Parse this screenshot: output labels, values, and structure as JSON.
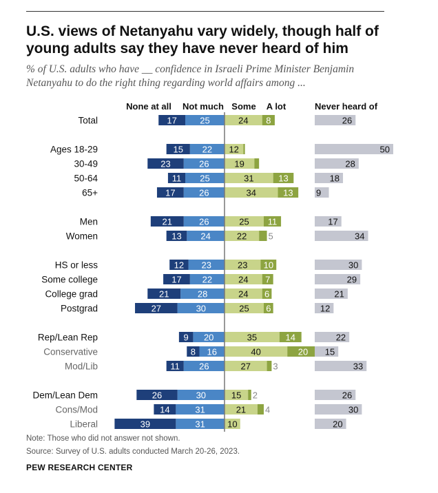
{
  "title": "U.S. views of Netanyahu vary widely, though half of young adults say they have never heard of him",
  "subtitle": "% of U.S. adults who have __ confidence in Israeli Prime Minister Benjamin Netanyahu to do the right thing regarding world affairs among ...",
  "note": "Note: Those who did not answer not shown.",
  "source": "Source: Survey of U.S. adults conducted March 20-26, 2023.",
  "brand": "PEW RESEARCH CENTER",
  "colors": {
    "none_at_all": "#1e3f7a",
    "not_much": "#4a86c6",
    "some": "#c8d48a",
    "a_lot": "#8da441",
    "never_heard": "#c4c6d0",
    "axis": "#777777"
  },
  "chart_data": {
    "type": "bar",
    "orientation": "diverging-horizontal",
    "column_headers": {
      "none_at_all": "None at all",
      "not_much": "Not much",
      "some": "Some",
      "a_lot": "A lot",
      "never_heard": "Never heard of"
    },
    "rows": [
      {
        "label": "Total",
        "group": 0,
        "none": 17,
        "notmuch": 25,
        "some": 24,
        "alot": 8,
        "never": 26,
        "some_label": "24",
        "alot_label": "8",
        "muted": false
      },
      {
        "label": "Ages 18-29",
        "group": 1,
        "none": 15,
        "notmuch": 22,
        "some": 12,
        "alot": 1,
        "never": 50,
        "some_label": "12",
        "alot_label": "",
        "muted": false
      },
      {
        "label": "30-49",
        "group": 1,
        "none": 23,
        "notmuch": 26,
        "some": 19,
        "alot": 3,
        "never": 28,
        "some_label": "19",
        "alot_label": "",
        "muted": false
      },
      {
        "label": "50-64",
        "group": 1,
        "none": 11,
        "notmuch": 25,
        "some": 31,
        "alot": 13,
        "never": 18,
        "some_label": "31",
        "alot_label": "13",
        "muted": false
      },
      {
        "label": "65+",
        "group": 1,
        "none": 17,
        "notmuch": 26,
        "some": 34,
        "alot": 13,
        "never": 9,
        "some_label": "34",
        "alot_label": "13",
        "muted": false
      },
      {
        "label": "Men",
        "group": 2,
        "none": 21,
        "notmuch": 26,
        "some": 25,
        "alot": 11,
        "never": 17,
        "some_label": "25",
        "alot_label": "11",
        "muted": false
      },
      {
        "label": "Women",
        "group": 2,
        "none": 13,
        "notmuch": 24,
        "some": 22,
        "alot": 5,
        "never": 34,
        "some_label": "22",
        "alot_label": "5",
        "muted": false
      },
      {
        "label": "HS or less",
        "group": 3,
        "none": 12,
        "notmuch": 23,
        "some": 23,
        "alot": 10,
        "never": 30,
        "some_label": "23",
        "alot_label": "10",
        "muted": false
      },
      {
        "label": "Some college",
        "group": 3,
        "none": 17,
        "notmuch": 22,
        "some": 24,
        "alot": 7,
        "never": 29,
        "some_label": "24",
        "alot_label": "7",
        "muted": false
      },
      {
        "label": "College grad",
        "group": 3,
        "none": 21,
        "notmuch": 28,
        "some": 24,
        "alot": 6,
        "never": 21,
        "some_label": "24",
        "alot_label": "6",
        "muted": false
      },
      {
        "label": "Postgrad",
        "group": 3,
        "none": 27,
        "notmuch": 30,
        "some": 25,
        "alot": 6,
        "never": 12,
        "some_label": "25",
        "alot_label": "6",
        "muted": false
      },
      {
        "label": "Rep/Lean Rep",
        "group": 4,
        "none": 9,
        "notmuch": 20,
        "some": 35,
        "alot": 14,
        "never": 22,
        "some_label": "35",
        "alot_label": "14",
        "muted": false
      },
      {
        "label": "Conservative",
        "group": 4,
        "none": 8,
        "notmuch": 16,
        "some": 40,
        "alot": 20,
        "never": 15,
        "some_label": "40",
        "alot_label": "20",
        "muted": true
      },
      {
        "label": "Mod/Lib",
        "group": 4,
        "none": 11,
        "notmuch": 26,
        "some": 27,
        "alot": 3,
        "never": 33,
        "some_label": "27",
        "alot_label": "3",
        "muted": true
      },
      {
        "label": "Dem/Lean Dem",
        "group": 5,
        "none": 26,
        "notmuch": 30,
        "some": 15,
        "alot": 2,
        "never": 26,
        "some_label": "15",
        "alot_label": "2",
        "muted": false
      },
      {
        "label": "Cons/Mod",
        "group": 5,
        "none": 14,
        "notmuch": 31,
        "some": 21,
        "alot": 4,
        "never": 30,
        "some_label": "21",
        "alot_label": "4",
        "muted": true
      },
      {
        "label": "Liberal",
        "group": 5,
        "none": 39,
        "notmuch": 31,
        "some": 10,
        "alot": 0,
        "never": 20,
        "some_label": "10",
        "alot_label": "",
        "muted": true
      }
    ]
  }
}
